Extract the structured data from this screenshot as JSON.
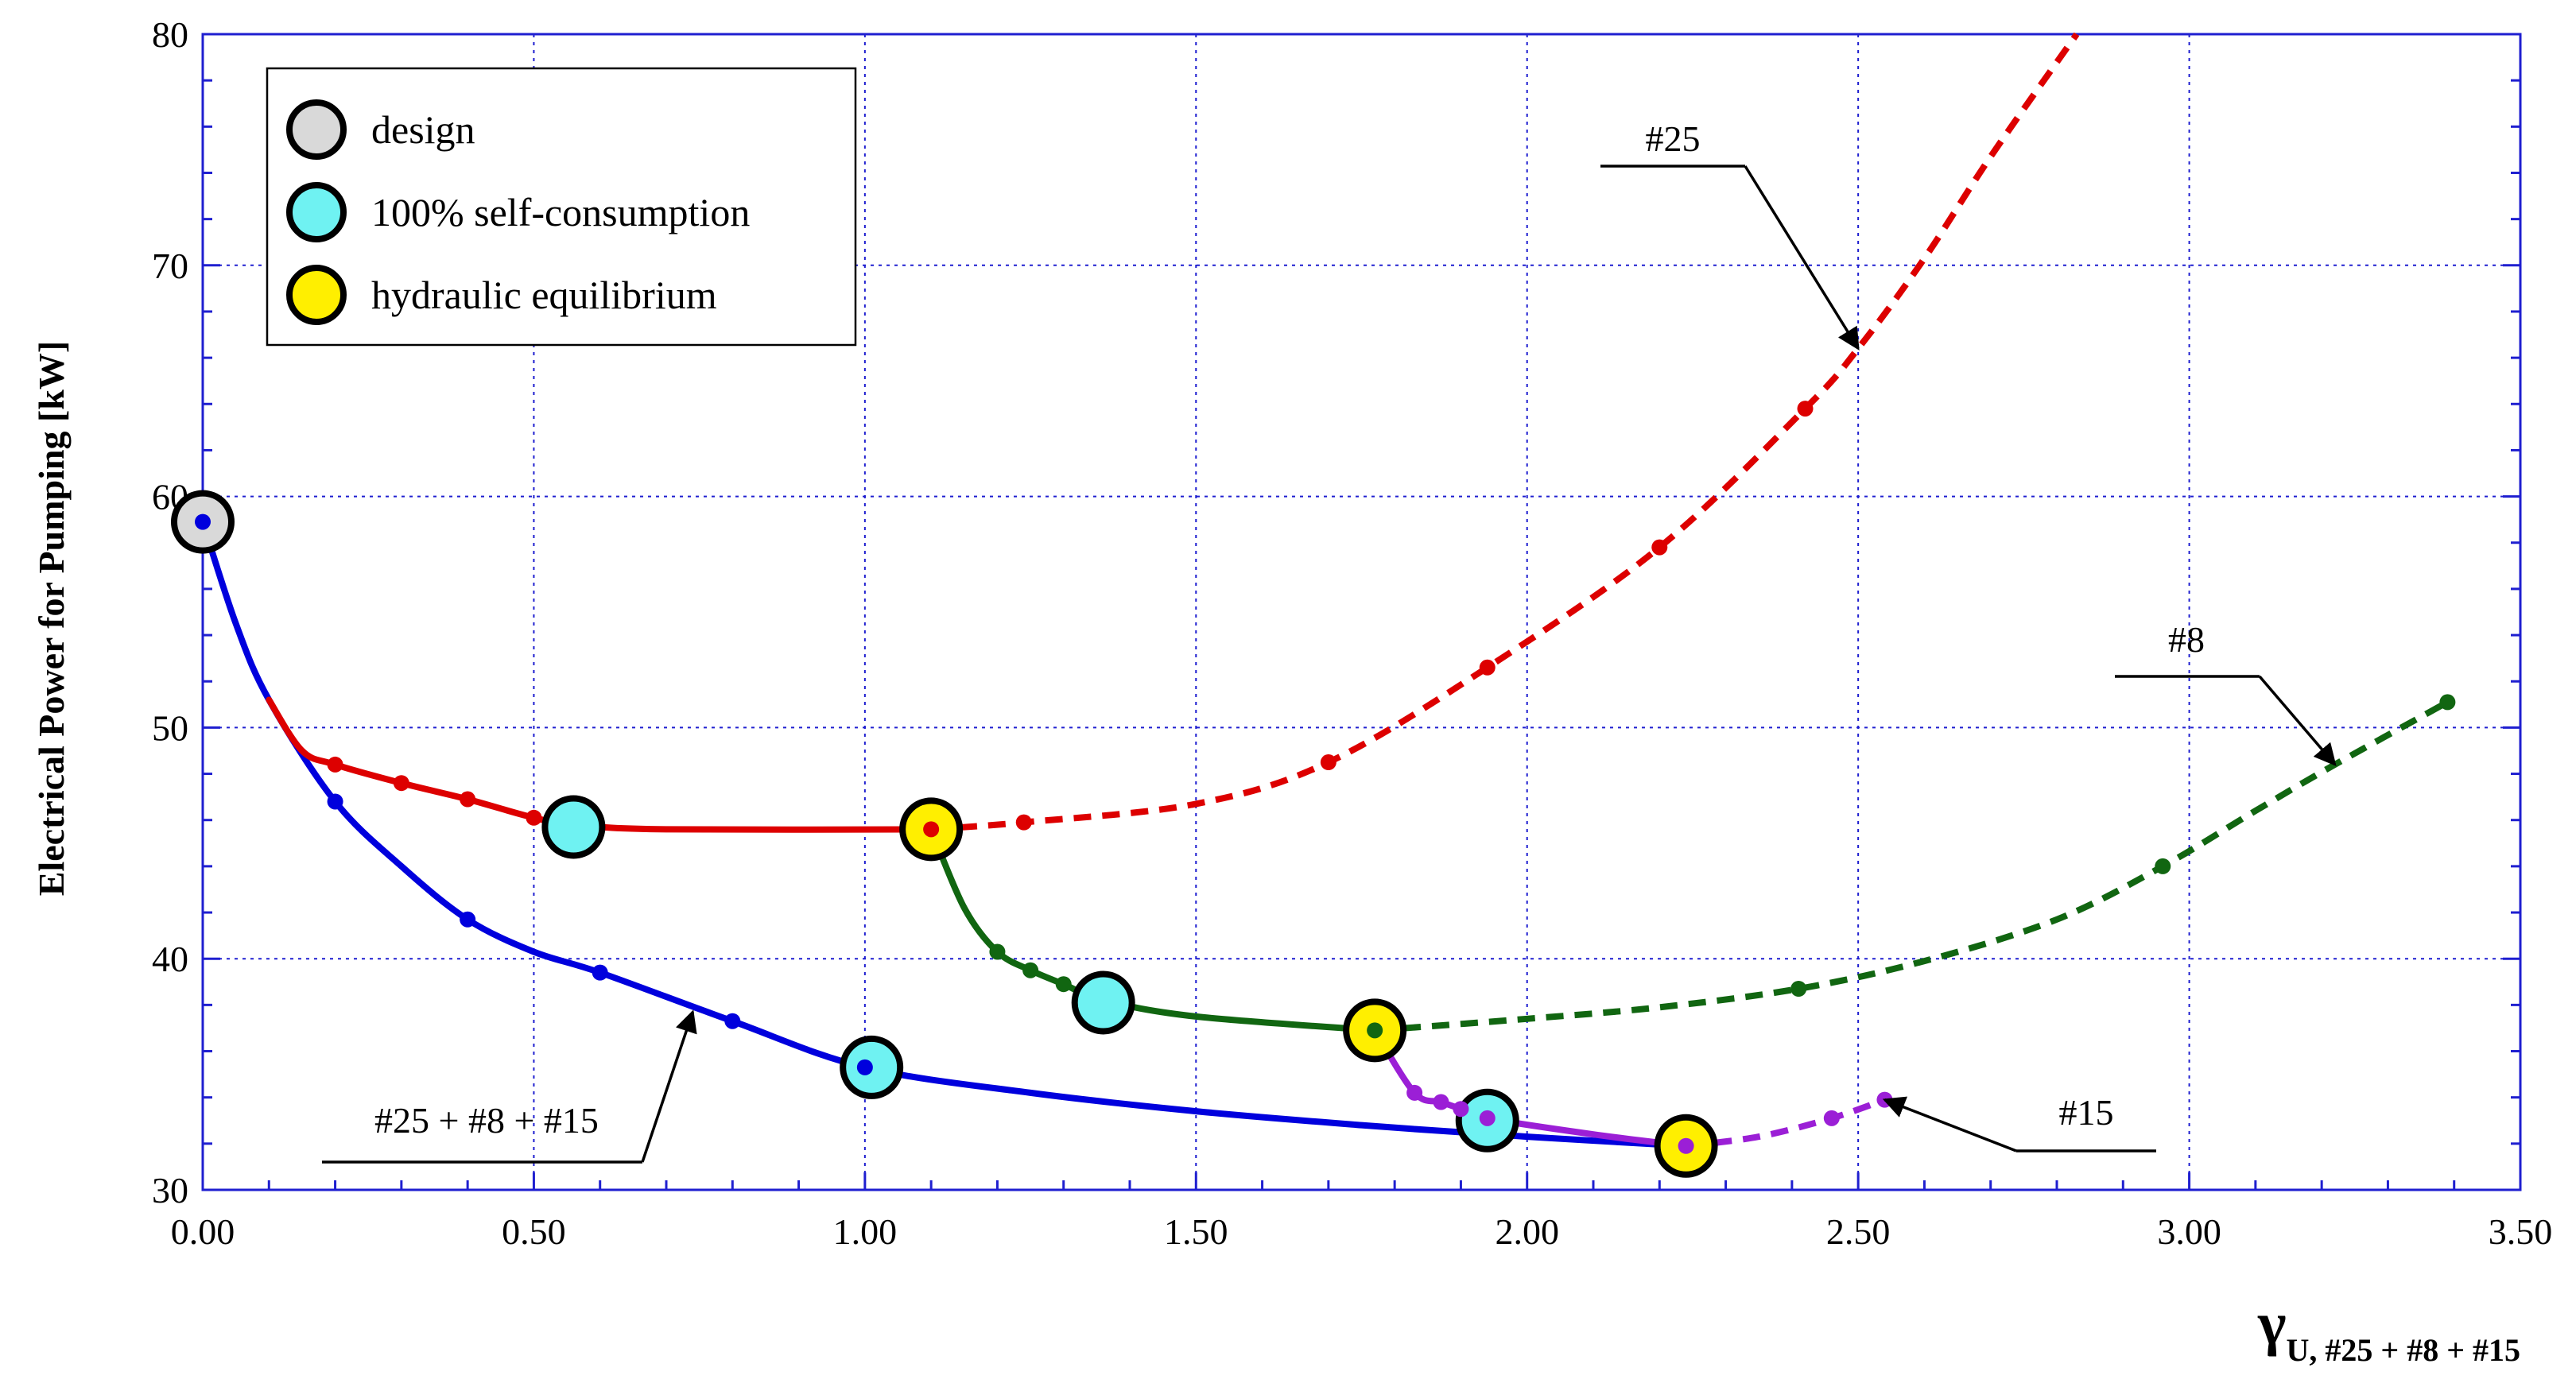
{
  "chart_data": {
    "type": "line",
    "title": "",
    "xlabel_main": "γ",
    "xlabel_sub": "U, #25 + #8 + #15",
    "ylabel": "Electrical Power for Pumping [kW]",
    "xlim": [
      0,
      3.5
    ],
    "ylim": [
      30,
      80
    ],
    "xticks": [
      0,
      0.5,
      1.0,
      1.5,
      2.0,
      2.5,
      3.0,
      3.5
    ],
    "xtick_labels": [
      "0.00",
      "0.50",
      "1.00",
      "1.50",
      "2.00",
      "2.50",
      "3.00",
      "3.50"
    ],
    "yticks": [
      30,
      40,
      50,
      60,
      70,
      80
    ],
    "ytick_labels": [
      "30",
      "40",
      "50",
      "60",
      "70",
      "80"
    ],
    "grid": true,
    "legend_position": "top-left",
    "legend": [
      {
        "label": "design",
        "color": "#d9d9d9"
      },
      {
        "label": "100% self-consumption",
        "color": "#6ff2f2"
      },
      {
        "label": "hydraulic equilibrium",
        "color": "#ffef00"
      }
    ],
    "series": [
      {
        "name": "#25 + #8 + #15",
        "color": "#0000dd",
        "solid": [
          [
            0,
            58.9
          ],
          [
            0.05,
            54.5
          ],
          [
            0.1,
            51.2
          ],
          [
            0.2,
            46.8
          ],
          [
            0.3,
            44.0
          ],
          [
            0.4,
            41.7
          ],
          [
            0.5,
            40.3
          ],
          [
            0.6,
            39.4
          ],
          [
            0.8,
            37.3
          ],
          [
            1.0,
            35.3
          ],
          [
            1.25,
            34.2
          ],
          [
            1.5,
            33.4
          ],
          [
            1.75,
            32.8
          ],
          [
            2.0,
            32.3
          ],
          [
            2.24,
            31.9
          ]
        ],
        "markers": [
          [
            0,
            58.9
          ],
          [
            0.2,
            46.8
          ],
          [
            0.4,
            41.7
          ],
          [
            0.6,
            39.4
          ],
          [
            0.8,
            37.3
          ],
          [
            1.0,
            35.3
          ]
        ]
      },
      {
        "name": "#25",
        "color": "#dd0000",
        "solid": [
          [
            0.1,
            51.2
          ],
          [
            0.15,
            49.0
          ],
          [
            0.2,
            48.4
          ],
          [
            0.3,
            47.6
          ],
          [
            0.4,
            46.9
          ],
          [
            0.5,
            46.1
          ],
          [
            0.56,
            45.8
          ],
          [
            0.7,
            45.6
          ],
          [
            1.1,
            45.6
          ]
        ],
        "dashed": [
          [
            1.1,
            45.6
          ],
          [
            1.24,
            45.9
          ],
          [
            1.5,
            46.7
          ],
          [
            1.7,
            48.5
          ],
          [
            1.94,
            52.6
          ],
          [
            2.2,
            57.8
          ],
          [
            2.42,
            63.8
          ],
          [
            2.5,
            66.4
          ],
          [
            2.6,
            70.3
          ],
          [
            2.7,
            74.7
          ],
          [
            2.83,
            80.0
          ]
        ],
        "markers": [
          [
            0.2,
            48.4
          ],
          [
            0.3,
            47.6
          ],
          [
            0.4,
            46.9
          ],
          [
            0.5,
            46.1
          ],
          [
            1.1,
            45.6
          ],
          [
            1.24,
            45.9
          ],
          [
            1.7,
            48.5
          ],
          [
            1.94,
            52.6
          ],
          [
            2.2,
            57.8
          ],
          [
            2.42,
            63.8
          ]
        ]
      },
      {
        "name": "#8",
        "color": "#116611",
        "solid": [
          [
            1.1,
            45.6
          ],
          [
            1.15,
            42.2
          ],
          [
            1.2,
            40.3
          ],
          [
            1.25,
            39.5
          ],
          [
            1.3,
            38.9
          ],
          [
            1.36,
            38.2
          ],
          [
            1.5,
            37.5
          ],
          [
            1.77,
            36.9
          ]
        ],
        "dashed": [
          [
            1.77,
            36.9
          ],
          [
            2.0,
            37.4
          ],
          [
            2.2,
            37.9
          ],
          [
            2.41,
            38.7
          ],
          [
            2.6,
            39.9
          ],
          [
            2.8,
            41.7
          ],
          [
            2.96,
            44.0
          ],
          [
            3.1,
            46.4
          ],
          [
            3.22,
            48.4
          ],
          [
            3.39,
            51.1
          ]
        ],
        "markers": [
          [
            1.2,
            40.3
          ],
          [
            1.25,
            39.5
          ],
          [
            1.3,
            38.9
          ],
          [
            1.77,
            36.9
          ],
          [
            2.41,
            38.7
          ],
          [
            2.96,
            44.0
          ],
          [
            3.39,
            51.1
          ]
        ]
      },
      {
        "name": "#15",
        "color": "#9b1fd6",
        "solid": [
          [
            1.77,
            36.9
          ],
          [
            1.83,
            34.2
          ],
          [
            1.87,
            33.8
          ],
          [
            1.9,
            33.5
          ],
          [
            1.94,
            33.1
          ],
          [
            2.1,
            32.4
          ],
          [
            2.24,
            31.9
          ]
        ],
        "dashed": [
          [
            2.24,
            31.9
          ],
          [
            2.35,
            32.3
          ],
          [
            2.46,
            33.1
          ],
          [
            2.54,
            33.9
          ]
        ],
        "markers": [
          [
            1.83,
            34.2
          ],
          [
            1.87,
            33.8
          ],
          [
            1.9,
            33.5
          ],
          [
            1.94,
            33.1
          ],
          [
            2.24,
            31.9
          ],
          [
            2.46,
            33.1
          ],
          [
            2.54,
            33.9
          ]
        ]
      }
    ],
    "highlight_points": [
      {
        "kind": "design",
        "x": 0,
        "y": 58.9
      },
      {
        "kind": "self-consumption",
        "x": 0.56,
        "y": 45.7
      },
      {
        "kind": "self-consumption",
        "x": 1.01,
        "y": 35.3
      },
      {
        "kind": "self-consumption",
        "x": 1.36,
        "y": 38.1
      },
      {
        "kind": "self-consumption",
        "x": 1.94,
        "y": 33.0
      },
      {
        "kind": "equilibrium",
        "x": 1.1,
        "y": 45.6
      },
      {
        "kind": "equilibrium",
        "x": 1.77,
        "y": 36.9
      },
      {
        "kind": "equilibrium",
        "x": 2.24,
        "y": 31.9
      }
    ],
    "annotations": [
      {
        "text": "#25",
        "target": [
          2.5,
          66.4
        ]
      },
      {
        "text": "#8",
        "target": [
          3.22,
          48.4
        ]
      },
      {
        "text": "#15",
        "target": [
          2.54,
          33.9
        ]
      },
      {
        "text": "#25 + #8 + #15",
        "target": [
          0.74,
          37.7
        ]
      }
    ]
  }
}
